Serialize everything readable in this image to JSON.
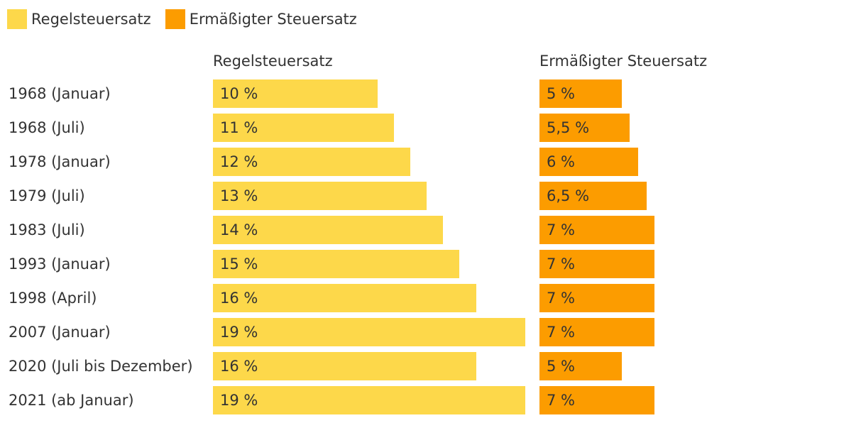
{
  "chart_data": {
    "type": "bar",
    "title": "",
    "legend": [
      "Regelsteuersatz",
      "Ermäßigter Steuersatz"
    ],
    "colors": {
      "regel": "#fdd84a",
      "ermaessigt": "#fc9c00"
    },
    "categories": [
      "1968 (Januar)",
      "1968 (Juli)",
      "1978 (Januar)",
      "1979 (Juli)",
      "1983 (Juli)",
      "1993 (Januar)",
      "1998 (April)",
      "2007 (Januar)",
      "2020 (Juli bis Dezember)",
      "2021 (ab Januar)"
    ],
    "series": [
      {
        "name": "Regelsteuersatz",
        "header": "Regelsteuersatz",
        "values": [
          10,
          11,
          12,
          13,
          14,
          15,
          16,
          19,
          16,
          19
        ],
        "labels": [
          "10 %",
          "11 %",
          "12 %",
          "13 %",
          "14 %",
          "15 %",
          "16 %",
          "19 %",
          "16 %",
          "19 %"
        ]
      },
      {
        "name": "Ermäßigter Steuersatz",
        "header": "Ermäßigter Steuersatz",
        "values": [
          5,
          5.5,
          6,
          6.5,
          7,
          7,
          7,
          7,
          5,
          7
        ],
        "labels": [
          "5 %",
          "5,5 %",
          "6 %",
          "6,5 %",
          "7 %",
          "7 %",
          "7 %",
          "7 %",
          "5 %",
          "7 %"
        ]
      }
    ],
    "xlim": [
      0,
      19
    ]
  }
}
